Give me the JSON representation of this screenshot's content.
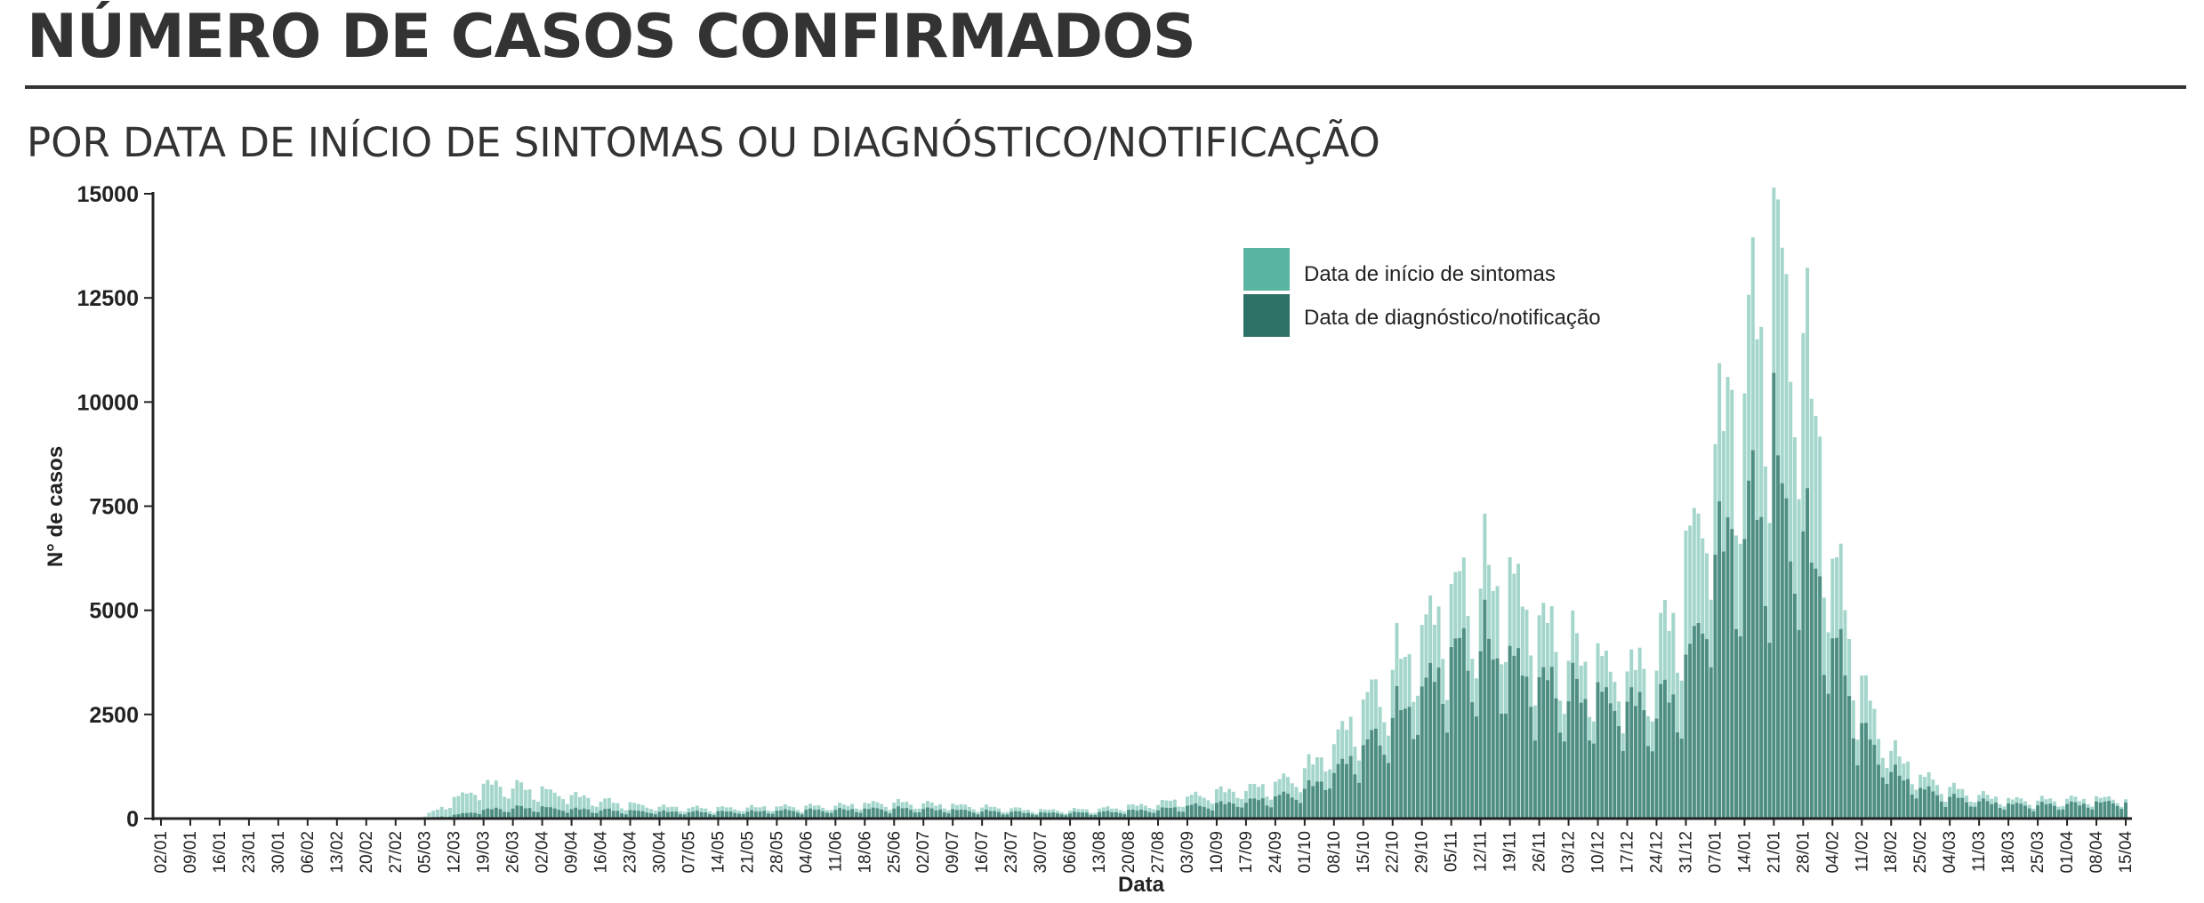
{
  "page": {
    "title": "NÚMERO DE CASOS CONFIRMADOS",
    "subtitle": "POR DATA DE INÍCIO DE SINTOMAS OU DIAGNÓSTICO/NOTIFICAÇÃO"
  },
  "chart_data": {
    "type": "bar",
    "xlabel": "Data",
    "ylabel": "N° de casos",
    "ylim": [
      0,
      15000
    ],
    "yticks": [
      0,
      2500,
      5000,
      7500,
      10000,
      12500,
      15000
    ],
    "xtick_labels": [
      "02/01",
      "09/01",
      "16/01",
      "23/01",
      "30/01",
      "06/02",
      "13/02",
      "20/02",
      "27/02",
      "05/03",
      "12/03",
      "19/03",
      "26/03",
      "02/04",
      "09/04",
      "16/04",
      "23/04",
      "30/04",
      "07/05",
      "14/05",
      "21/05",
      "28/05",
      "04/06",
      "11/06",
      "18/06",
      "25/06",
      "02/07",
      "09/07",
      "16/07",
      "23/07",
      "30/07",
      "06/08",
      "13/08",
      "20/08",
      "27/08",
      "03/09",
      "10/09",
      "17/09",
      "24/09",
      "01/10",
      "08/10",
      "15/10",
      "22/10",
      "29/10",
      "05/11",
      "12/11",
      "19/11",
      "26/11",
      "03/12",
      "10/12",
      "17/12",
      "24/12",
      "31/12",
      "07/01",
      "14/01",
      "21/01",
      "28/01",
      "04/02",
      "11/02",
      "18/02",
      "25/02",
      "04/03",
      "11/03",
      "18/03",
      "25/03",
      "01/04",
      "08/04",
      "15/04"
    ],
    "grid": false,
    "legend_position": "top-center",
    "colors": {
      "symptoms": "#5ab5a3",
      "diagnosis": "#2d7167"
    },
    "series": [
      {
        "name": "Data de início de sintomas",
        "values_weekly_avg": [
          0,
          0,
          0,
          0,
          0,
          0,
          0,
          0,
          0,
          50,
          450,
          800,
          750,
          650,
          550,
          420,
          330,
          280,
          250,
          240,
          260,
          280,
          280,
          300,
          350,
          370,
          350,
          320,
          270,
          230,
          200,
          200,
          220,
          290,
          350,
          480,
          620,
          700,
          800,
          1100,
          1800,
          2600,
          3400,
          4400,
          5200,
          5500,
          5600,
          4600,
          3900,
          3600,
          3400,
          3700,
          5800,
          8800,
          10500,
          12800,
          11500,
          6200,
          3000,
          1600,
          1000,
          700,
          550,
          450,
          420,
          450,
          470,
          480
        ],
        "peaks": [
          {
            "x": "03/11",
            "value": 7750
          },
          {
            "x": "20/01",
            "value": 14600
          }
        ]
      },
      {
        "name": "Data de diagnóstico/notificação",
        "values_weekly_avg": [
          0,
          0,
          0,
          0,
          0,
          0,
          0,
          0,
          0,
          10,
          80,
          200,
          250,
          250,
          220,
          200,
          170,
          160,
          150,
          150,
          160,
          180,
          190,
          200,
          220,
          230,
          220,
          200,
          170,
          150,
          130,
          130,
          140,
          180,
          210,
          280,
          330,
          400,
          480,
          650,
          1100,
          1600,
          2300,
          3000,
          3800,
          4000,
          3700,
          3200,
          2900,
          2800,
          2700,
          2500,
          3300,
          6200,
          6900,
          7500,
          6800,
          4300,
          2000,
          1100,
          700,
          480,
          400,
          330,
          310,
          330,
          360,
          400
        ],
        "peaks": [
          {
            "x": "03/11",
            "value": 5850
          },
          {
            "x": "21/01",
            "value": 10700
          }
        ]
      }
    ]
  }
}
